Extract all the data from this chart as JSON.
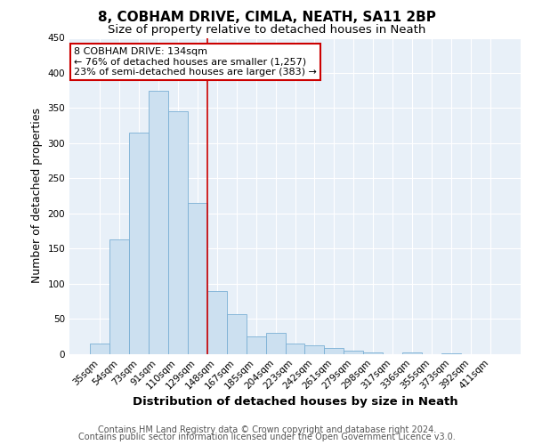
{
  "title": "8, COBHAM DRIVE, CIMLA, NEATH, SA11 2BP",
  "subtitle": "Size of property relative to detached houses in Neath",
  "xlabel": "Distribution of detached houses by size in Neath",
  "ylabel": "Number of detached properties",
  "bar_labels": [
    "35sqm",
    "54sqm",
    "73sqm",
    "91sqm",
    "110sqm",
    "129sqm",
    "148sqm",
    "167sqm",
    "185sqm",
    "204sqm",
    "223sqm",
    "242sqm",
    "261sqm",
    "279sqm",
    "298sqm",
    "317sqm",
    "336sqm",
    "355sqm",
    "373sqm",
    "392sqm",
    "411sqm"
  ],
  "bar_values": [
    15,
    163,
    315,
    375,
    345,
    215,
    90,
    57,
    25,
    30,
    15,
    12,
    8,
    4,
    2,
    0,
    2,
    0,
    1,
    0,
    0
  ],
  "bar_color": "#cce0f0",
  "bar_edge_color": "#7aafd4",
  "property_line_x": 5.5,
  "property_line_color": "#cc0000",
  "annotation_text": "8 COBHAM DRIVE: 134sqm\n← 76% of detached houses are smaller (1,257)\n23% of semi-detached houses are larger (383) →",
  "annotation_box_color": "#ffffff",
  "annotation_box_edge": "#cc0000",
  "ylim": [
    0,
    450
  ],
  "yticks": [
    0,
    50,
    100,
    150,
    200,
    250,
    300,
    350,
    400,
    450
  ],
  "footer_line1": "Contains HM Land Registry data © Crown copyright and database right 2024.",
  "footer_line2": "Contains public sector information licensed under the Open Government Licence v3.0.",
  "background_color": "#ffffff",
  "plot_bg_color": "#e8f0f8",
  "grid_color": "#ffffff",
  "title_fontsize": 11,
  "subtitle_fontsize": 9.5,
  "xlabel_fontsize": 9.5,
  "ylabel_fontsize": 9,
  "tick_fontsize": 7.5,
  "footer_fontsize": 7,
  "annot_fontsize": 8
}
